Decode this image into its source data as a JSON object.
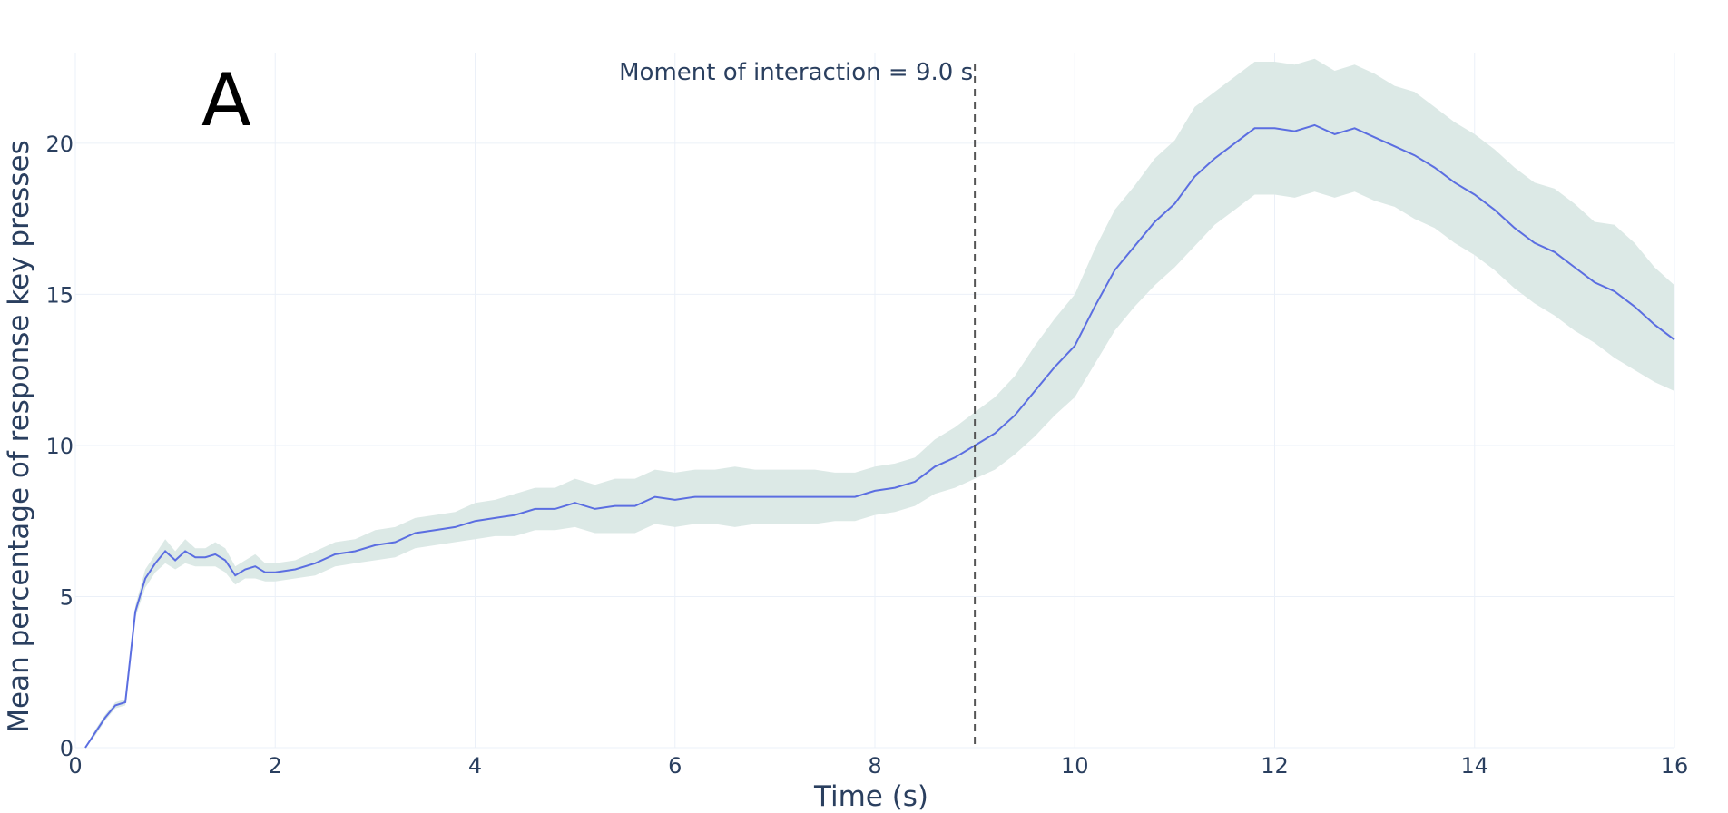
{
  "chart_data": {
    "type": "line",
    "xlabel": "Time (s)",
    "ylabel": "Mean percentage of response key presses",
    "panel_label": "A",
    "xlim": [
      0,
      16
    ],
    "ylim": [
      0,
      23
    ],
    "xticks": [
      0,
      2,
      4,
      6,
      8,
      10,
      12,
      14,
      16
    ],
    "yticks": [
      0,
      5,
      10,
      15,
      20
    ],
    "grid": true,
    "annotation": {
      "x": 9.0,
      "text": "Moment of interaction = 9.0 s"
    },
    "colors": {
      "line": "#5b6ee1",
      "band": "#dce9e6",
      "grid": "#ebf0f8",
      "text": "#2a3f5f"
    },
    "series": [
      {
        "x": [
          0.1,
          0.2,
          0.3,
          0.4,
          0.5,
          0.6,
          0.7,
          0.8,
          0.9,
          1.0,
          1.1,
          1.2,
          1.3,
          1.4,
          1.5,
          1.6,
          1.7,
          1.8,
          1.9,
          2.0,
          2.2,
          2.4,
          2.6,
          2.8,
          3.0,
          3.2,
          3.4,
          3.6,
          3.8,
          4.0,
          4.2,
          4.4,
          4.6,
          4.8,
          5.0,
          5.2,
          5.4,
          5.6,
          5.8,
          6.0,
          6.2,
          6.4,
          6.6,
          6.8,
          7.0,
          7.2,
          7.4,
          7.6,
          7.8,
          8.0,
          8.2,
          8.4,
          8.6,
          8.8,
          9.0,
          9.2,
          9.4,
          9.6,
          9.8,
          10.0,
          10.2,
          10.4,
          10.6,
          10.8,
          11.0,
          11.2,
          11.4,
          11.6,
          11.8,
          12.0,
          12.2,
          12.4,
          12.6,
          12.8,
          13.0,
          13.2,
          13.4,
          13.6,
          13.8,
          14.0,
          14.2,
          14.4,
          14.6,
          14.8,
          15.0,
          15.2,
          15.4,
          15.6,
          15.8,
          16.0
        ],
        "y": [
          0.0,
          0.5,
          1.0,
          1.4,
          1.5,
          4.5,
          5.6,
          6.1,
          6.5,
          6.2,
          6.5,
          6.3,
          6.3,
          6.4,
          6.2,
          5.7,
          5.9,
          6.0,
          5.8,
          5.8,
          5.9,
          6.1,
          6.4,
          6.5,
          6.7,
          6.8,
          7.1,
          7.2,
          7.3,
          7.5,
          7.6,
          7.7,
          7.9,
          7.9,
          8.1,
          7.9,
          8.0,
          8.0,
          8.3,
          8.2,
          8.3,
          8.3,
          8.3,
          8.3,
          8.3,
          8.3,
          8.3,
          8.3,
          8.3,
          8.5,
          8.6,
          8.8,
          9.3,
          9.6,
          10.0,
          10.4,
          11.0,
          11.8,
          12.6,
          13.3,
          14.6,
          15.8,
          16.6,
          17.4,
          18.0,
          18.9,
          19.5,
          20.0,
          20.5,
          20.5,
          20.4,
          20.6,
          20.3,
          20.5,
          20.2,
          19.9,
          19.6,
          19.2,
          18.7,
          18.3,
          17.8,
          17.2,
          16.7,
          16.4,
          15.9,
          15.4,
          15.1,
          14.6,
          14.0,
          13.5
        ],
        "lower": [
          0.0,
          0.4,
          0.9,
          1.3,
          1.4,
          4.3,
          5.3,
          5.8,
          6.1,
          5.9,
          6.1,
          6.0,
          6.0,
          6.0,
          5.8,
          5.4,
          5.6,
          5.6,
          5.5,
          5.5,
          5.6,
          5.7,
          6.0,
          6.1,
          6.2,
          6.3,
          6.6,
          6.7,
          6.8,
          6.9,
          7.0,
          7.0,
          7.2,
          7.2,
          7.3,
          7.1,
          7.1,
          7.1,
          7.4,
          7.3,
          7.4,
          7.4,
          7.3,
          7.4,
          7.4,
          7.4,
          7.4,
          7.5,
          7.5,
          7.7,
          7.8,
          8.0,
          8.4,
          8.6,
          8.9,
          9.2,
          9.7,
          10.3,
          11.0,
          11.6,
          12.7,
          13.8,
          14.6,
          15.3,
          15.9,
          16.6,
          17.3,
          17.8,
          18.3,
          18.3,
          18.2,
          18.4,
          18.2,
          18.4,
          18.1,
          17.9,
          17.5,
          17.2,
          16.7,
          16.3,
          15.8,
          15.2,
          14.7,
          14.3,
          13.8,
          13.4,
          12.9,
          12.5,
          12.1,
          11.8
        ],
        "upper": [
          0.0,
          0.6,
          1.1,
          1.5,
          1.6,
          4.7,
          5.9,
          6.4,
          6.9,
          6.5,
          6.9,
          6.6,
          6.6,
          6.8,
          6.6,
          6.0,
          6.2,
          6.4,
          6.1,
          6.1,
          6.2,
          6.5,
          6.8,
          6.9,
          7.2,
          7.3,
          7.6,
          7.7,
          7.8,
          8.1,
          8.2,
          8.4,
          8.6,
          8.6,
          8.9,
          8.7,
          8.9,
          8.9,
          9.2,
          9.1,
          9.2,
          9.2,
          9.3,
          9.2,
          9.2,
          9.2,
          9.2,
          9.1,
          9.1,
          9.3,
          9.4,
          9.6,
          10.2,
          10.6,
          11.1,
          11.6,
          12.3,
          13.3,
          14.2,
          15.0,
          16.5,
          17.8,
          18.6,
          19.5,
          20.1,
          21.2,
          21.7,
          22.2,
          22.7,
          22.7,
          22.6,
          22.8,
          22.4,
          22.6,
          22.3,
          21.9,
          21.7,
          21.2,
          20.7,
          20.3,
          19.8,
          19.2,
          18.7,
          18.5,
          18.0,
          17.4,
          17.3,
          16.7,
          15.9,
          15.3
        ]
      }
    ]
  }
}
